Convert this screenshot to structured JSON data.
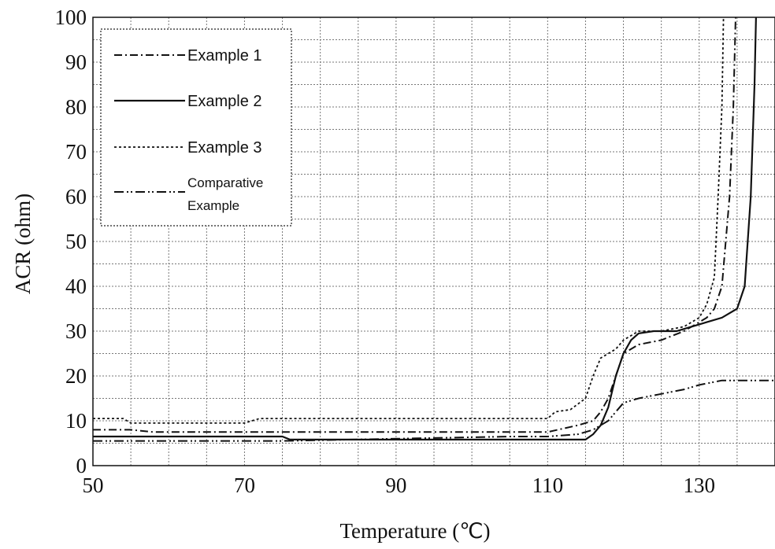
{
  "chart_data": {
    "type": "line",
    "title": "",
    "xlabel": "Temperature (℃)",
    "ylabel": "ACR (ohm)",
    "xlim": [
      50,
      140
    ],
    "ylim": [
      0,
      100
    ],
    "x_ticks": [
      50,
      70,
      90,
      110,
      130
    ],
    "y_ticks": [
      0,
      10,
      20,
      30,
      40,
      50,
      60,
      70,
      80,
      90,
      100
    ],
    "grid": true,
    "legend_position": "top-left",
    "series": [
      {
        "name": "Example 1",
        "dash": "dash-dot",
        "points": [
          [
            50,
            8
          ],
          [
            55,
            8
          ],
          [
            58,
            7.5
          ],
          [
            70,
            7.5
          ],
          [
            76,
            7.5
          ],
          [
            90,
            7.5
          ],
          [
            110,
            7.5
          ],
          [
            114,
            9
          ],
          [
            116,
            10
          ],
          [
            117,
            12
          ],
          [
            118,
            15
          ],
          [
            119,
            20
          ],
          [
            120,
            25
          ],
          [
            122,
            27
          ],
          [
            125,
            28
          ],
          [
            128,
            30
          ],
          [
            130,
            32
          ],
          [
            131,
            33
          ],
          [
            132,
            35
          ],
          [
            133,
            40
          ],
          [
            134,
            60
          ],
          [
            134.5,
            80
          ],
          [
            134.8,
            100
          ]
        ]
      },
      {
        "name": "Example 2",
        "dash": "solid",
        "points": [
          [
            50,
            6.5
          ],
          [
            58,
            6.5
          ],
          [
            75,
            6.5
          ],
          [
            76,
            5.8
          ],
          [
            90,
            5.8
          ],
          [
            110,
            5.8
          ],
          [
            115,
            5.8
          ],
          [
            116,
            7
          ],
          [
            117,
            9
          ],
          [
            118,
            13
          ],
          [
            119,
            20
          ],
          [
            120,
            25
          ],
          [
            121,
            28
          ],
          [
            122,
            29.5
          ],
          [
            124,
            30
          ],
          [
            127,
            30
          ],
          [
            129,
            31
          ],
          [
            131,
            32
          ],
          [
            133,
            33
          ],
          [
            135,
            35
          ],
          [
            136,
            40
          ],
          [
            136.8,
            60
          ],
          [
            137.3,
            85
          ],
          [
            137.5,
            100
          ]
        ]
      },
      {
        "name": "Example 3",
        "dash": "dotted",
        "points": [
          [
            50,
            10.5
          ],
          [
            54,
            10.5
          ],
          [
            55,
            9.5
          ],
          [
            60,
            9.5
          ],
          [
            70,
            9.5
          ],
          [
            72,
            10.5
          ],
          [
            90,
            10.5
          ],
          [
            110,
            10.5
          ],
          [
            111,
            12
          ],
          [
            113,
            12.5
          ],
          [
            115,
            15
          ],
          [
            116,
            20
          ],
          [
            117,
            24
          ],
          [
            118,
            25
          ],
          [
            119,
            26
          ],
          [
            120,
            28
          ],
          [
            122,
            30
          ],
          [
            125,
            30
          ],
          [
            128,
            31
          ],
          [
            130,
            33
          ],
          [
            131,
            36
          ],
          [
            132,
            42
          ],
          [
            132.5,
            60
          ],
          [
            133,
            80
          ],
          [
            133.2,
            100
          ]
        ]
      },
      {
        "name": "Comparative Example",
        "dash": "dash-dot-dot",
        "points": [
          [
            50,
            5.5
          ],
          [
            60,
            5.5
          ],
          [
            75,
            5.5
          ],
          [
            90,
            6
          ],
          [
            105,
            6.5
          ],
          [
            110,
            6.5
          ],
          [
            114,
            7
          ],
          [
            116,
            8
          ],
          [
            117,
            9
          ],
          [
            118,
            10
          ],
          [
            119,
            12
          ],
          [
            120,
            14
          ],
          [
            122,
            15
          ],
          [
            125,
            16
          ],
          [
            128,
            17
          ],
          [
            130,
            18
          ],
          [
            133,
            19
          ],
          [
            136,
            19
          ],
          [
            140,
            19
          ]
        ]
      }
    ]
  }
}
